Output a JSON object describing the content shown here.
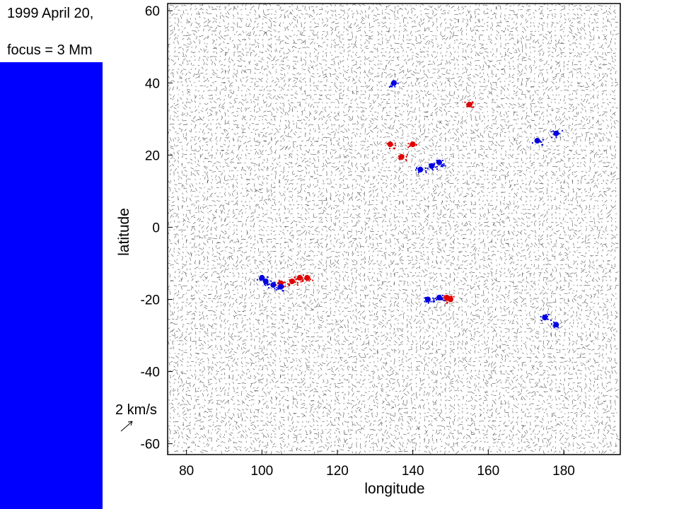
{
  "caption": {
    "line1": "1999 April 20,",
    "line2": "focus = 3 Mm"
  },
  "panel_color": "#0000ff",
  "chart_data": {
    "type": "scatter",
    "subtype": "vector-field map with magnetogram overlay",
    "xlabel": "longitude",
    "ylabel": "latitude",
    "xlim": [
      75,
      195
    ],
    "ylim": [
      -63,
      62
    ],
    "xticks": [
      80,
      100,
      120,
      140,
      160,
      180
    ],
    "yticks": [
      60,
      40,
      20,
      0,
      -20,
      -40,
      -60
    ],
    "scale_label": "2 km/s",
    "vector_color": "#000000",
    "series": [
      {
        "color": "#e00000",
        "points": [
          [
            110,
            -14
          ],
          [
            112,
            -14
          ],
          [
            108,
            -15
          ],
          [
            105,
            -15.5
          ],
          [
            137,
            19.5
          ],
          [
            149,
            -19.5
          ],
          [
            150,
            -20
          ],
          [
            155,
            34
          ],
          [
            134,
            23
          ],
          [
            140,
            23
          ]
        ]
      },
      {
        "color": "#0000e0",
        "points": [
          [
            101,
            -15
          ],
          [
            103,
            -16
          ],
          [
            105,
            -16.5
          ],
          [
            100,
            -14
          ],
          [
            142,
            16
          ],
          [
            145,
            17
          ],
          [
            147,
            18
          ],
          [
            144,
            -20
          ],
          [
            147,
            -19.5
          ],
          [
            173,
            24
          ],
          [
            178,
            26
          ],
          [
            175,
            -25
          ],
          [
            178,
            -27
          ],
          [
            135,
            40
          ]
        ]
      }
    ]
  }
}
